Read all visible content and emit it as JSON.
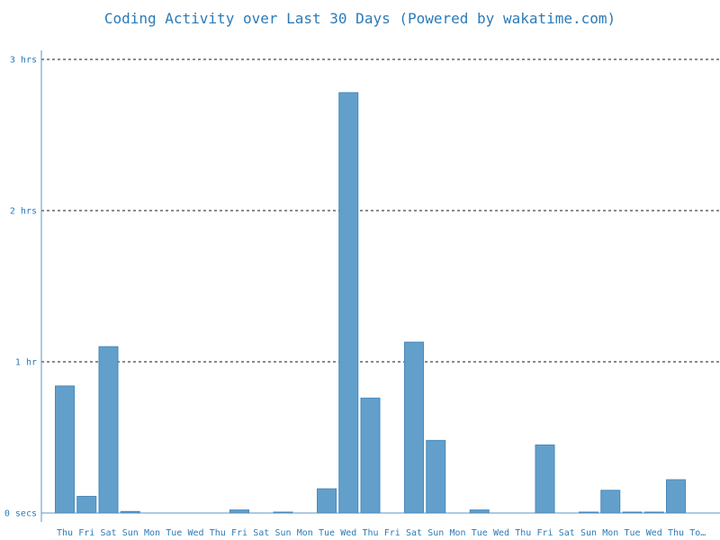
{
  "chart_data": {
    "type": "bar",
    "title": "Coding Activity over Last 30 Days (Powered by wakatime.com)",
    "xlabel": "",
    "ylabel": "",
    "y_unit": "hours",
    "ylim": [
      0,
      3
    ],
    "y_ticks": [
      {
        "value": 0,
        "label": "0 secs"
      },
      {
        "value": 1,
        "label": "1 hr"
      },
      {
        "value": 2,
        "label": "2 hrs"
      },
      {
        "value": 3,
        "label": "3 hrs"
      }
    ],
    "grid": true,
    "legend": "none",
    "bar_color": "#62a0cb",
    "bar_edge_color": "#4a89bb",
    "categories": [
      "Thu",
      "Fri",
      "Sat",
      "Sun",
      "Mon",
      "Tue",
      "Wed",
      "Thu",
      "Fri",
      "Sat",
      "Sun",
      "Mon",
      "Tue",
      "Wed",
      "Thu",
      "Fri",
      "Sat",
      "Sun",
      "Mon",
      "Tue",
      "Wed",
      "Thu",
      "Fri",
      "Sat",
      "Sun",
      "Mon",
      "Tue",
      "Wed",
      "Thu",
      "To…"
    ],
    "values": [
      0.84,
      0.11,
      1.1,
      0.01,
      0,
      0,
      0,
      0,
      0.02,
      0,
      0.005,
      0,
      0.16,
      2.78,
      0.76,
      0,
      1.13,
      0.48,
      0,
      0.02,
      0,
      0,
      0.45,
      0,
      0.005,
      0.15,
      0.005,
      0.005,
      0.22,
      0
    ]
  }
}
